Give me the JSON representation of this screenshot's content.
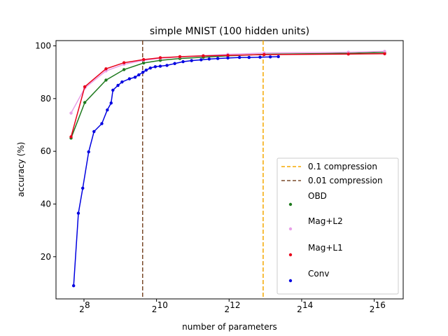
{
  "chart_data": {
    "type": "line",
    "title": "simple MNIST (100 hidden units)",
    "xlabel": "number of parameters",
    "ylabel": "accuracy (%)",
    "xscale": "log2",
    "xlim": [
      150,
      114000
    ],
    "ylim": [
      4,
      102
    ],
    "xticks": [
      256,
      1024,
      4096,
      16384,
      65536
    ],
    "xtick_base": "2",
    "xtick_exponents": [
      "8",
      "10",
      "12",
      "14",
      "16"
    ],
    "yticks": [
      "20",
      "40",
      "60",
      "80",
      "100"
    ],
    "legend_position": "lower right",
    "vlines": [
      {
        "name": "0.1 compression",
        "x": 7850,
        "color": "#f5a800",
        "style": "dashed"
      },
      {
        "name": "0.01 compression",
        "x": 785,
        "color": "#7a4a2a",
        "style": "dashed"
      }
    ],
    "series": [
      {
        "name": "OBD",
        "color": "#1e7a1e",
        "x": [
          200,
          260,
          390,
          550,
          800,
          1100,
          1600,
          2500,
          4000,
          8000,
          40000,
          80000
        ],
        "y": [
          65,
          78.5,
          87,
          91,
          93.5,
          94.5,
          95.2,
          95.7,
          96.2,
          96.8,
          97.2,
          97.5
        ]
      },
      {
        "name": "Mag+L2",
        "color": "#e8a0e8",
        "x": [
          200,
          260,
          390,
          550,
          800,
          1100,
          1600,
          2500,
          4000,
          8000,
          40000,
          80000
        ],
        "y": [
          74.5,
          84,
          90.5,
          93,
          94.5,
          95.3,
          95.8,
          96.3,
          96.8,
          97.3,
          97.6,
          97.9
        ]
      },
      {
        "name": "Mag+L1",
        "color": "#e8001a",
        "x": [
          200,
          260,
          390,
          550,
          800,
          1100,
          1600,
          2500,
          4000,
          8000,
          40000,
          80000
        ],
        "y": [
          65.5,
          84.5,
          91.3,
          93.6,
          94.8,
          95.5,
          95.9,
          96.2,
          96.4,
          96.7,
          96.9,
          97
        ]
      },
      {
        "name": "Conv",
        "color": "#0000e0",
        "x": [
          210,
          230,
          250,
          280,
          310,
          360,
          400,
          430,
          445,
          490,
          530,
          610,
          680,
          730,
          790,
          840,
          910,
          1000,
          1100,
          1250,
          1450,
          1700,
          2000,
          2400,
          2800,
          3300,
          4000,
          5000,
          6000,
          7400,
          9000,
          10500
        ],
        "y": [
          9,
          36.5,
          46,
          59.8,
          67.5,
          70.5,
          75.7,
          78.3,
          83.2,
          85,
          86.3,
          87.5,
          88.1,
          89,
          90,
          90.8,
          91.6,
          92.1,
          92.3,
          92.6,
          93.3,
          94,
          94.4,
          94.7,
          95,
          95.2,
          95.4,
          95.6,
          95.6,
          95.7,
          95.8,
          95.9
        ]
      }
    ]
  }
}
